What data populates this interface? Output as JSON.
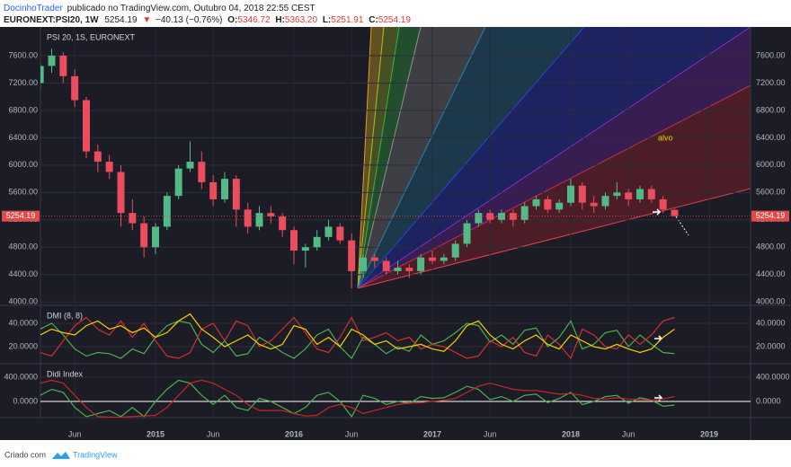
{
  "header": {
    "author": "DocinhoTrader",
    "published": "publicado no TradingView.com, Outubro 04, 2018 22:55 CEST",
    "symbol": "EURONEXT:PSI20, 1W",
    "price": "5254.19",
    "arrow": "▼",
    "change": "−40.13 (−0.76%)",
    "ohlc": [
      {
        "label": "O:",
        "value": "5346.72"
      },
      {
        "label": "H:",
        "value": "5363.20"
      },
      {
        "label": "L:",
        "value": "5251.91"
      },
      {
        "label": "C:",
        "value": "5254.19"
      }
    ]
  },
  "footer": {
    "made_with": "Criado com",
    "brand": "TradingView"
  },
  "chart_data": [
    {
      "type": "candlestick",
      "title": "PSI 20, 1S, EURONEXT",
      "annotation": "alvo",
      "categories": [
        null,
        null,
        null,
        null,
        null,
        "Jun",
        null,
        null,
        null,
        null,
        null,
        null,
        "2015",
        null,
        null,
        null,
        null,
        "Jun",
        null,
        null,
        null,
        null,
        null,
        null,
        "2016",
        null,
        null,
        null,
        null,
        "Jun",
        null,
        null,
        null,
        null,
        null,
        null,
        "2017",
        null,
        null,
        null,
        null,
        "Jun",
        null,
        null,
        null,
        null,
        null,
        null,
        "2018",
        null,
        null,
        null,
        null,
        "Jun",
        null,
        null,
        null,
        null,
        null,
        null,
        "2019"
      ],
      "open": [
        null,
        null,
        7200,
        7450,
        7600,
        7300,
        6950,
        6200,
        6050,
        5900,
        5300,
        5150,
        4800,
        5100,
        5550,
        5950,
        6050,
        5750,
        5500,
        5800,
        5350,
        5100,
        5300,
        5250,
        5050,
        4750,
        4800,
        4950,
        5100,
        4900,
        4450,
        4650,
        4600,
        4450,
        4500,
        4450,
        4650,
        4600,
        4650,
        4850,
        5150,
        5300,
        5200,
        5300,
        5200,
        5400,
        5500,
        5350,
        5450,
        5700,
        5450,
        5400,
        5550,
        5600,
        5500,
        5650,
        5500,
        5346.72,
        null,
        null,
        null
      ],
      "high": [
        null,
        null,
        7500,
        7700,
        7650,
        7400,
        7000,
        6300,
        6150,
        6000,
        5500,
        5250,
        5150,
        5600,
        6000,
        6350,
        6200,
        5850,
        5900,
        5850,
        5450,
        5400,
        5400,
        5300,
        5100,
        4850,
        5050,
        5200,
        5150,
        5000,
        4700,
        4700,
        4650,
        4600,
        4550,
        4700,
        4750,
        4700,
        4900,
        5200,
        5350,
        5350,
        5350,
        5350,
        5450,
        5550,
        5550,
        5500,
        5800,
        5750,
        5550,
        5600,
        5750,
        5650,
        5700,
        5700,
        5550,
        5363.2,
        null,
        null,
        null
      ],
      "low": [
        null,
        null,
        7100,
        7350,
        7200,
        6850,
        6100,
        5900,
        5800,
        5100,
        5050,
        4650,
        4700,
        5050,
        5500,
        5900,
        5650,
        5400,
        5450,
        5100,
        5000,
        5050,
        5150,
        4950,
        4550,
        4500,
        4750,
        4900,
        4850,
        4200,
        4350,
        4500,
        4400,
        4400,
        4350,
        4400,
        4550,
        4550,
        4600,
        4800,
        5100,
        5150,
        5150,
        5100,
        5150,
        5350,
        5300,
        5300,
        5400,
        5350,
        5300,
        5350,
        5500,
        5400,
        5450,
        5450,
        5300,
        5251.91,
        null,
        null,
        null
      ],
      "close": [
        null,
        null,
        7450,
        7600,
        7300,
        6950,
        6200,
        6050,
        5900,
        5300,
        5150,
        4800,
        5100,
        5550,
        5950,
        6050,
        5750,
        5500,
        5800,
        5350,
        5100,
        5300,
        5250,
        5050,
        4750,
        4800,
        4950,
        5100,
        4900,
        4450,
        4650,
        4600,
        4450,
        4500,
        4450,
        4650,
        4600,
        4650,
        4850,
        5150,
        5300,
        5200,
        5300,
        5200,
        5400,
        5500,
        5350,
        5450,
        5700,
        5450,
        5400,
        5550,
        5600,
        5500,
        5650,
        5500,
        5350,
        5254.19,
        null,
        null,
        null
      ],
      "up_color": "#53b987",
      "down_color": "#eb4d5c",
      "last_price": 5254.19,
      "last_price_color": "#e04a4a",
      "ylim": [
        3950,
        8020
      ],
      "yticks": [
        {
          "value": 4000,
          "label": "4000.00"
        },
        {
          "value": 4400,
          "label": "4400.00"
        },
        {
          "value": 4800,
          "label": "4800.00"
        },
        {
          "value": 5200,
          "label": "5200.00"
        },
        {
          "value": 5600,
          "label": "5600.00"
        },
        {
          "value": 6000,
          "label": "6000.00"
        },
        {
          "value": 6400,
          "label": "6400.00"
        },
        {
          "value": 6800,
          "label": "6800.00"
        },
        {
          "value": 7200,
          "label": "7200.00"
        },
        {
          "value": 7600,
          "label": "7600.00"
        }
      ],
      "grid": true
    },
    {
      "type": "line",
      "title": "DMI (8, 8)",
      "series": [
        {
          "color": "#4caf50",
          "values": [
            null,
            null,
            35,
            40,
            30,
            18,
            12,
            15,
            14,
            10,
            18,
            14,
            28,
            38,
            42,
            40,
            22,
            15,
            25,
            12,
            14,
            28,
            22,
            15,
            10,
            18,
            30,
            35,
            20,
            10,
            28,
            22,
            14,
            20,
            16,
            30,
            22,
            25,
            32,
            40,
            38,
            24,
            30,
            22,
            34,
            36,
            20,
            28,
            42,
            18,
            22,
            32,
            34,
            20,
            30,
            22,
            15,
            14,
            null,
            null,
            null
          ]
        },
        {
          "color": "#d32f2f",
          "values": [
            null,
            null,
            15,
            12,
            25,
            38,
            45,
            35,
            30,
            42,
            28,
            40,
            25,
            12,
            10,
            15,
            35,
            40,
            25,
            42,
            38,
            20,
            25,
            35,
            45,
            32,
            18,
            15,
            28,
            45,
            25,
            28,
            32,
            25,
            28,
            18,
            22,
            20,
            15,
            10,
            12,
            25,
            20,
            28,
            15,
            12,
            30,
            22,
            10,
            35,
            30,
            20,
            18,
            30,
            22,
            30,
            42,
            45,
            null,
            null,
            null
          ]
        },
        {
          "color": "#f5d000",
          "values": [
            null,
            null,
            30,
            35,
            32,
            30,
            38,
            42,
            35,
            38,
            32,
            36,
            28,
            32,
            42,
            48,
            35,
            28,
            20,
            25,
            30,
            22,
            18,
            22,
            38,
            35,
            22,
            28,
            20,
            35,
            30,
            22,
            25,
            18,
            20,
            22,
            18,
            16,
            25,
            38,
            42,
            30,
            22,
            18,
            25,
            30,
            22,
            18,
            30,
            25,
            20,
            18,
            22,
            18,
            15,
            18,
            28,
            35,
            null,
            null,
            null
          ]
        }
      ],
      "ylim": [
        5.4,
        55.4
      ],
      "yticks": [
        {
          "value": 20,
          "label": "20.0000"
        },
        {
          "value": 40,
          "label": "40.0000"
        }
      ],
      "grid": true
    },
    {
      "type": "line",
      "title": "Didi Index",
      "series": [
        {
          "color": "#4caf50",
          "values": [
            null,
            null,
            100,
            200,
            150,
            -100,
            -250,
            -200,
            -150,
            -250,
            -100,
            -250,
            0,
            200,
            350,
            300,
            100,
            -50,
            100,
            -100,
            -150,
            50,
            0,
            -100,
            -200,
            -100,
            100,
            150,
            0,
            -250,
            100,
            50,
            -50,
            0,
            -30,
            80,
            50,
            60,
            150,
            250,
            200,
            30,
            80,
            0,
            100,
            120,
            -20,
            50,
            150,
            -50,
            0,
            80,
            100,
            -30,
            60,
            20,
            -80,
            -60,
            null,
            null,
            null
          ]
        },
        {
          "color": "#c62828",
          "values": [
            null,
            null,
            300,
            350,
            300,
            100,
            -100,
            -250,
            -260,
            -260,
            -250,
            -240,
            -230,
            -100,
            100,
            300,
            350,
            300,
            200,
            100,
            -50,
            -150,
            -150,
            -150,
            -200,
            -240,
            -230,
            -100,
            -50,
            -100,
            -200,
            -150,
            -100,
            -50,
            -30,
            -20,
            0,
            20,
            50,
            150,
            250,
            300,
            250,
            200,
            180,
            180,
            150,
            120,
            130,
            100,
            50,
            40,
            60,
            40,
            30,
            20,
            40,
            80,
            null,
            null,
            null
          ]
        }
      ],
      "zero_line_color": "#ffffff",
      "ylim": [
        -267,
        622
      ],
      "yticks": [
        {
          "value": 0,
          "label": "0.0000"
        },
        {
          "value": 400,
          "label": "400.0000"
        }
      ],
      "grid": true
    }
  ]
}
